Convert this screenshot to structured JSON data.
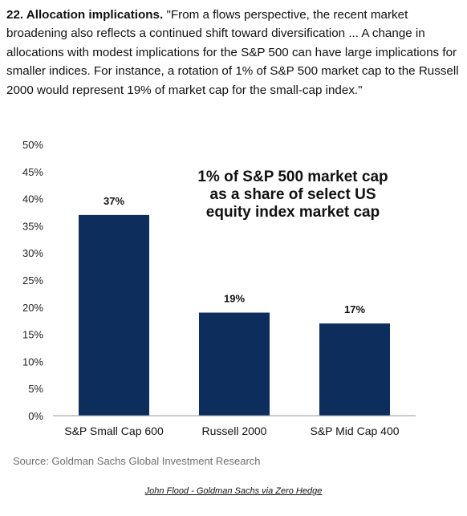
{
  "intro": {
    "heading": "22. Allocation implications.",
    "text": "\"From a flows perspective, the recent market broadening also reflects a continued shift toward diversification ... A change in allocations with modest implications for the S&P 500 can have large implications for smaller indices. For instance, a rotation of 1% of S&P 500 market cap to the Russell 2000 would represent 19% of market cap for the small-cap index.\""
  },
  "chart_data": {
    "type": "bar",
    "title_lines": [
      "1% of S&P 500 market cap",
      "as a share of select US",
      "equity index market cap"
    ],
    "categories": [
      "S&P Small Cap 600",
      "Russell 2000",
      "S&P Mid Cap 400"
    ],
    "values": [
      37,
      19,
      17
    ],
    "value_labels": [
      "37%",
      "19%",
      "17%"
    ],
    "ylim": [
      0,
      50
    ],
    "yticks": [
      "0%",
      "5%",
      "10%",
      "15%",
      "20%",
      "25%",
      "30%",
      "35%",
      "40%",
      "45%",
      "50%"
    ],
    "bar_color": "#0d2d5c",
    "grid": false,
    "xlabel": "",
    "ylabel": ""
  },
  "source": "Source: Goldman Sachs Global Investment Research",
  "credit": "John Flood - Goldman Sachs via Zero Hedge"
}
